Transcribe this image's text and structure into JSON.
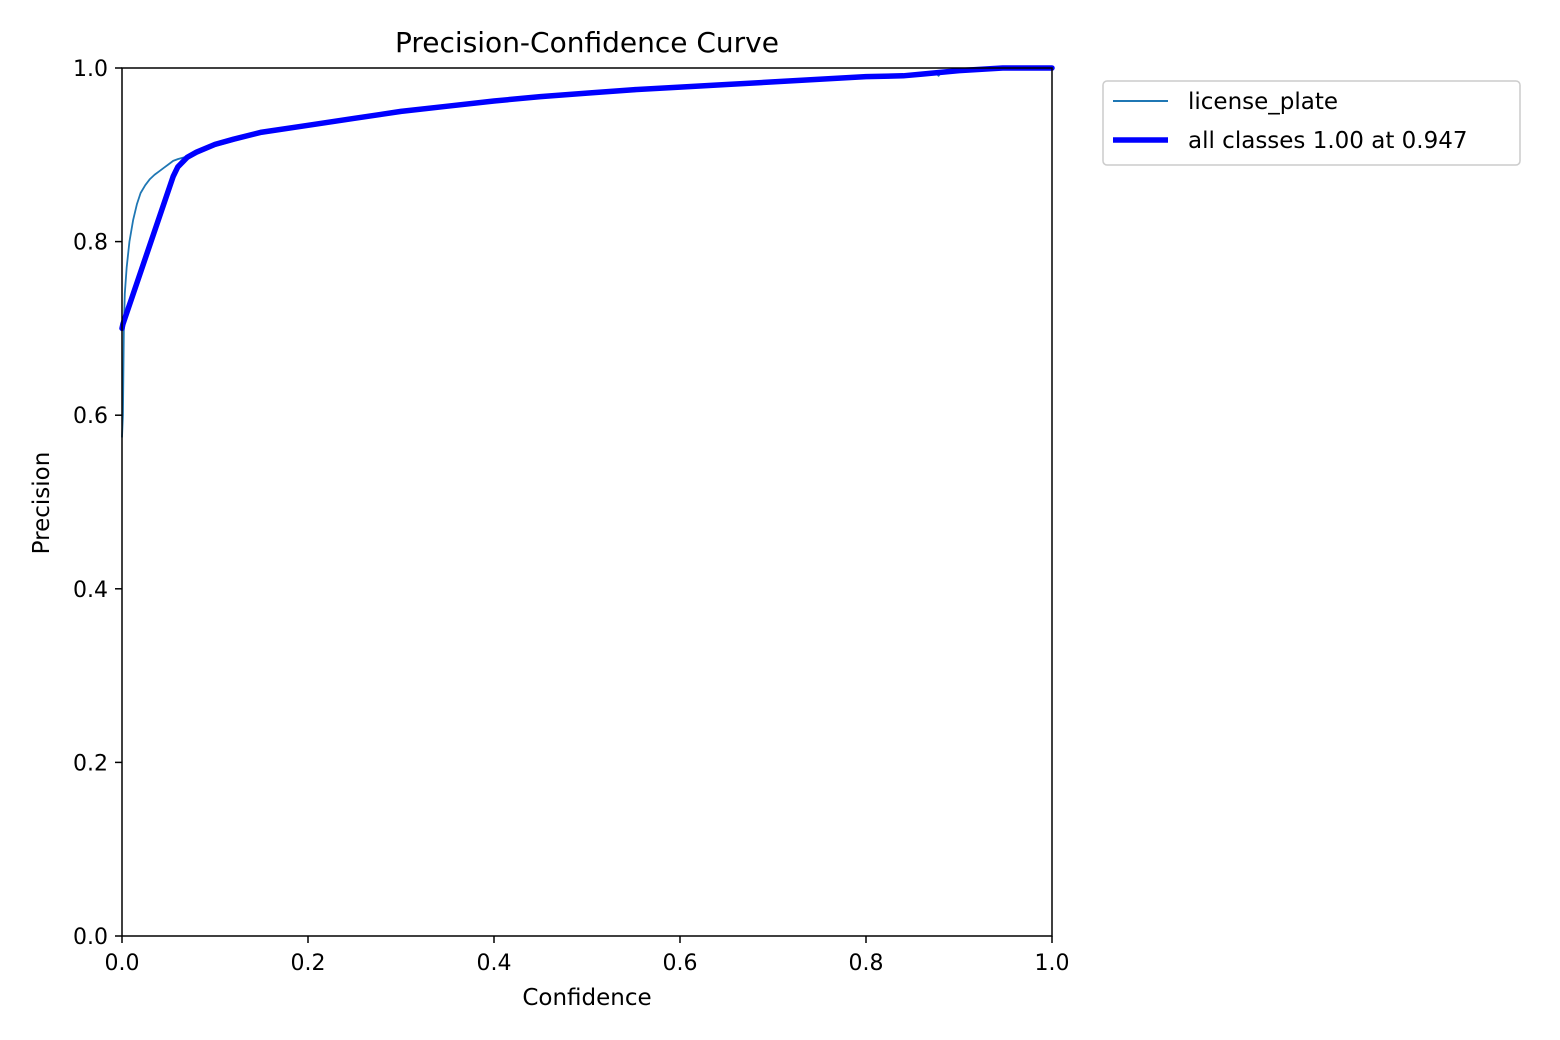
{
  "chart_data": {
    "type": "line",
    "title": "Precision-Confidence Curve",
    "xlabel": "Confidence",
    "ylabel": "Precision",
    "xlim": [
      0.0,
      1.0
    ],
    "ylim": [
      0.0,
      1.0
    ],
    "xticks": [
      "0.0",
      "0.2",
      "0.4",
      "0.6",
      "0.8",
      "1.0"
    ],
    "yticks": [
      "0.0",
      "0.2",
      "0.4",
      "0.6",
      "0.8",
      "1.0"
    ],
    "grid": false,
    "legend_position": "outside-top-right",
    "series": [
      {
        "name": "license_plate",
        "color": "#1f77b4",
        "line_width": "thin",
        "x": [
          0.0,
          0.001,
          0.002,
          0.003,
          0.005,
          0.008,
          0.012,
          0.016,
          0.02,
          0.025,
          0.03,
          0.035,
          0.04,
          0.045,
          0.05,
          0.055,
          0.06,
          0.07,
          0.08,
          0.1,
          0.12,
          0.15,
          0.2,
          0.25,
          0.3,
          0.35,
          0.4,
          0.45,
          0.5,
          0.55,
          0.6,
          0.65,
          0.7,
          0.75,
          0.8,
          0.84,
          0.86,
          0.87,
          0.875,
          0.878,
          0.88,
          0.885,
          0.9,
          0.94,
          0.97,
          1.0
        ],
        "y": [
          0.575,
          0.6,
          0.7,
          0.74,
          0.77,
          0.8,
          0.825,
          0.843,
          0.856,
          0.865,
          0.872,
          0.877,
          0.881,
          0.885,
          0.889,
          0.893,
          0.895,
          0.898,
          0.902,
          0.91,
          0.916,
          0.925,
          0.933,
          0.941,
          0.949,
          0.957,
          0.963,
          0.968,
          0.972,
          0.975,
          0.978,
          0.981,
          0.984,
          0.987,
          0.99,
          0.992,
          0.994,
          0.993,
          0.995,
          0.991,
          0.994,
          0.996,
          0.997,
          1.0,
          1.0,
          1.0
        ]
      },
      {
        "name": "all classes 1.00 at 0.947",
        "color": "#0000ff",
        "line_width": "thick",
        "x": [
          0.0,
          0.001,
          0.055,
          0.06,
          0.07,
          0.08,
          0.1,
          0.12,
          0.15,
          0.2,
          0.25,
          0.3,
          0.35,
          0.4,
          0.45,
          0.5,
          0.55,
          0.6,
          0.65,
          0.7,
          0.75,
          0.8,
          0.84,
          0.86,
          0.88,
          0.9,
          0.947,
          1.0
        ],
        "y": [
          0.7,
          0.705,
          0.875,
          0.886,
          0.897,
          0.903,
          0.912,
          0.918,
          0.926,
          0.934,
          0.942,
          0.95,
          0.956,
          0.962,
          0.967,
          0.971,
          0.975,
          0.978,
          0.981,
          0.984,
          0.987,
          0.99,
          0.991,
          0.993,
          0.995,
          0.997,
          1.0,
          1.0
        ]
      }
    ]
  }
}
